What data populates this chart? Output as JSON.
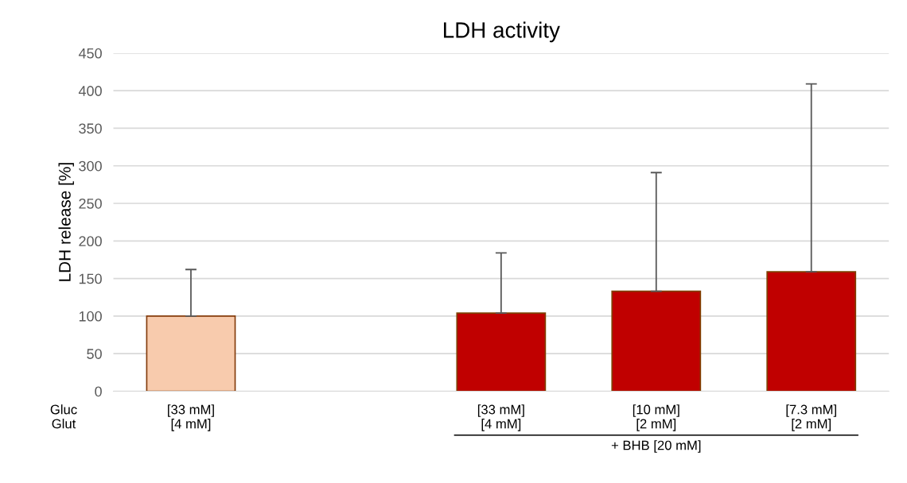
{
  "chart_data": {
    "type": "bar",
    "title": "LDH activity",
    "ylabel": "LDH release [%]",
    "categories": [
      "[33 mM]\n[4 mM]",
      null,
      "[33 mM]\n[4 mM]",
      "[10 mM]\n[2 mM]",
      "[7.3 mM]\n[2 mM]"
    ],
    "values": [
      100,
      null,
      104,
      133,
      159
    ],
    "colors": [
      "#f8cbad",
      null,
      "#c00000",
      "#c00000",
      "#c00000"
    ],
    "errors": [
      [
        100,
        162
      ],
      null,
      [
        104,
        184
      ],
      [
        133,
        291
      ],
      [
        159,
        409
      ]
    ],
    "ylim": [
      0,
      450
    ],
    "yticks": [
      0,
      50,
      100,
      150,
      200,
      250,
      300,
      350,
      400,
      450
    ],
    "grid": "y",
    "annotations": [
      "Gluc\nGlut",
      "+ BHB [20 mM]"
    ]
  }
}
